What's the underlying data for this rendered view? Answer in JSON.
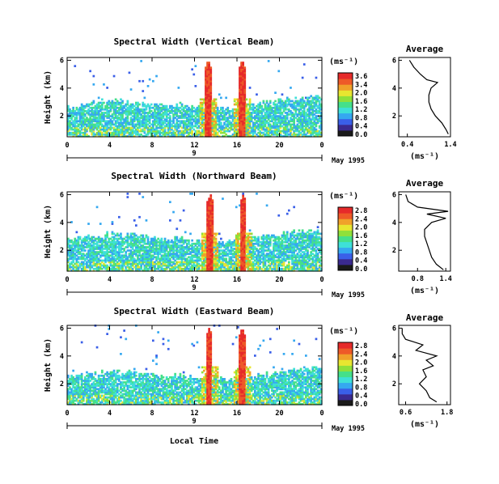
{
  "chart_data": {
    "type": "heatmap",
    "colorbar": {
      "unit_label": "(ms⁻¹)",
      "colors": [
        "#1a1a1a",
        "#3a2a8f",
        "#3a5fe8",
        "#35a8f0",
        "#3ee0d8",
        "#45e08a",
        "#8fe03a",
        "#e8e630",
        "#f0a12a",
        "#ee5a28",
        "#e62a2a"
      ]
    },
    "panels": [
      {
        "id": "vertical",
        "title": "Spectral Width (Vertical Beam)",
        "ylabel": "Height (km)",
        "xlabel": "",
        "x_ticks": [
          "0",
          "4",
          "8",
          "12",
          "16",
          "20",
          "0"
        ],
        "x_range": [
          0,
          24
        ],
        "y_ticks": [
          "2",
          "4",
          "6"
        ],
        "y_range": [
          0.5,
          6.2
        ],
        "date_label": "May 1995",
        "day_marker": "9",
        "colorbar_ticks": [
          "3.6",
          "3.4",
          "2.0",
          "1.6",
          "1.2",
          "0.8",
          "0.4",
          "0.0"
        ],
        "average": {
          "title": "Average",
          "xlabel": "(ms⁻¹)",
          "x_ticks": [
            "0.4",
            "1.4"
          ],
          "x_range": [
            0.2,
            1.4
          ],
          "y_ticks": [
            "2",
            "4",
            "6"
          ],
          "y_range": [
            0.5,
            6.2
          ],
          "profile": [
            [
              0.7,
              1.35
            ],
            [
              1.0,
              1.3
            ],
            [
              1.5,
              1.2
            ],
            [
              2.0,
              1.05
            ],
            [
              2.5,
              0.95
            ],
            [
              3.0,
              0.9
            ],
            [
              3.5,
              0.9
            ],
            [
              4.0,
              0.95
            ],
            [
              4.4,
              1.1
            ],
            [
              4.6,
              0.85
            ],
            [
              5.0,
              0.7
            ],
            [
              5.5,
              0.55
            ],
            [
              6.0,
              0.45
            ]
          ]
        },
        "spikes": [
          13.2,
          16.4
        ],
        "cloud_top": 2.6
      },
      {
        "id": "northward",
        "title": "Spectral Width (Northward Beam)",
        "ylabel": "Height (km)",
        "xlabel": "",
        "x_ticks": [
          "0",
          "4",
          "8",
          "12",
          "16",
          "20",
          "0"
        ],
        "x_range": [
          0,
          24
        ],
        "y_ticks": [
          "2",
          "4",
          "6"
        ],
        "y_range": [
          0.5,
          6.2
        ],
        "date_label": "May 1995",
        "day_marker": "9",
        "colorbar_ticks": [
          "2.8",
          "2.4",
          "2.0",
          "1.6",
          "1.2",
          "0.8",
          "0.4",
          "0.0"
        ],
        "average": {
          "title": "Average",
          "xlabel": "(ms⁻¹)",
          "x_ticks": [
            "0.8",
            "1.4"
          ],
          "x_range": [
            0.4,
            1.5
          ],
          "y_ticks": [
            "2",
            "4",
            "6"
          ],
          "y_range": [
            0.5,
            6.2
          ],
          "profile": [
            [
              0.6,
              1.35
            ],
            [
              1.0,
              1.2
            ],
            [
              1.5,
              1.1
            ],
            [
              2.0,
              1.05
            ],
            [
              2.5,
              1.0
            ],
            [
              3.0,
              0.95
            ],
            [
              3.5,
              0.95
            ],
            [
              4.0,
              1.1
            ],
            [
              4.3,
              1.4
            ],
            [
              4.6,
              1.0
            ],
            [
              4.8,
              1.45
            ],
            [
              5.1,
              0.8
            ],
            [
              5.5,
              0.6
            ],
            [
              6.0,
              0.55
            ]
          ]
        },
        "spikes": [
          13.4,
          16.5
        ],
        "cloud_top": 2.7
      },
      {
        "id": "eastward",
        "title": "Spectral Width (Eastward Beam)",
        "ylabel": "Height (km)",
        "xlabel": "Local Time",
        "x_ticks": [
          "0",
          "4",
          "8",
          "12",
          "16",
          "20",
          "0"
        ],
        "x_range": [
          0,
          24
        ],
        "y_ticks": [
          "2",
          "4",
          "6"
        ],
        "y_range": [
          0.5,
          6.2
        ],
        "date_label": "May 1995",
        "day_marker": "9",
        "colorbar_ticks": [
          "2.8",
          "2.4",
          "2.0",
          "1.6",
          "1.2",
          "0.8",
          "0.4",
          "0.0"
        ],
        "average": {
          "title": "Average",
          "xlabel": "(ms⁻¹)",
          "x_ticks": [
            "0.6",
            "1.8"
          ],
          "x_range": [
            0.4,
            1.9
          ],
          "y_ticks": [
            "2",
            "4",
            "6"
          ],
          "y_range": [
            0.5,
            6.2
          ],
          "profile": [
            [
              0.7,
              1.5
            ],
            [
              1.0,
              1.3
            ],
            [
              1.5,
              1.2
            ],
            [
              2.0,
              1.0
            ],
            [
              2.5,
              1.2
            ],
            [
              3.0,
              1.1
            ],
            [
              3.3,
              1.4
            ],
            [
              3.7,
              1.2
            ],
            [
              4.0,
              1.5
            ],
            [
              4.4,
              0.9
            ],
            [
              4.8,
              1.1
            ],
            [
              5.2,
              0.6
            ],
            [
              5.6,
              0.5
            ],
            [
              6.0,
              0.5
            ]
          ]
        },
        "spikes": [
          13.3,
          16.4
        ],
        "cloud_top": 2.4
      }
    ]
  }
}
